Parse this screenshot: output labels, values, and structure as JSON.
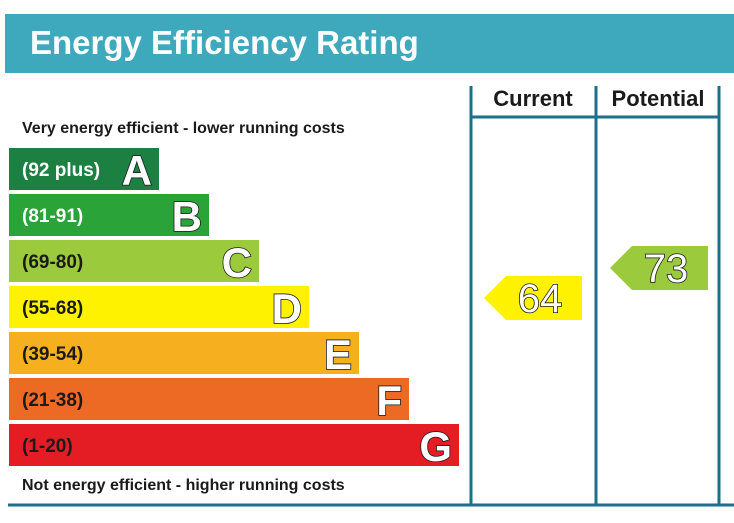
{
  "title": "Energy Efficiency Rating",
  "columns": {
    "current": "Current",
    "potential": "Potential"
  },
  "notes": {
    "top": "Very energy efficient - lower running costs",
    "bottom": "Not energy efficient - higher running costs"
  },
  "chart_data": {
    "type": "bar",
    "title": "Energy Efficiency Rating",
    "bands": [
      {
        "letter": "A",
        "range": "(92 plus)",
        "color": "#1c8043",
        "text_color": "#ffffff"
      },
      {
        "letter": "B",
        "range": "(81-91)",
        "color": "#2aa339",
        "text_color": "#ffffff"
      },
      {
        "letter": "C",
        "range": "(69-80)",
        "color": "#9bca3c",
        "text_color": "#1a1a1a"
      },
      {
        "letter": "D",
        "range": "(55-68)",
        "color": "#fff200",
        "text_color": "#1a1a1a"
      },
      {
        "letter": "E",
        "range": "(39-54)",
        "color": "#f6b01f",
        "text_color": "#1a1a1a"
      },
      {
        "letter": "F",
        "range": "(21-38)",
        "color": "#ed6a24",
        "text_color": "#1a1a1a"
      },
      {
        "letter": "G",
        "range": "(1-20)",
        "color": "#e31d23",
        "text_color": "#1a1a1a"
      }
    ],
    "current": {
      "value": 64,
      "band": "D",
      "color": "#fff200"
    },
    "potential": {
      "value": 73,
      "band": "C",
      "color": "#9bca3c"
    }
  },
  "colors": {
    "header": "#3ea8bd",
    "frame": "#1e6f8c"
  }
}
